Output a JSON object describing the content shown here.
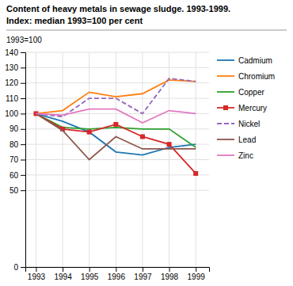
{
  "chart_data": {
    "type": "line",
    "title": "Content of heavy metals in sewage sludge. 1993-1999.",
    "subtitle": "Index: median 1993=100 per cent",
    "ylabel": "1993=100",
    "x": [
      1993,
      1994,
      1995,
      1996,
      1997,
      1998,
      1999
    ],
    "xlim": [
      1992.6,
      1999.5
    ],
    "xticks": [
      1993,
      1994,
      1995,
      1996,
      1997,
      1998,
      1999
    ],
    "ylim": [
      0,
      140
    ],
    "yticks": [
      0,
      50,
      60,
      70,
      80,
      90,
      100,
      110,
      120,
      130,
      140
    ],
    "grid": true,
    "legend": "right",
    "series": [
      {
        "name": "Cadmium",
        "values": [
          100,
          95,
          88,
          75,
          73,
          78,
          80
        ],
        "line_style": "solid"
      },
      {
        "name": "Chromium",
        "values": [
          100,
          102,
          114,
          111,
          113,
          122,
          121
        ],
        "line_style": "solid"
      },
      {
        "name": "Copper",
        "values": [
          100,
          91,
          90,
          91,
          90,
          90,
          78
        ],
        "line_style": "solid"
      },
      {
        "name": "Mercury",
        "values": [
          100,
          90,
          88,
          93,
          85,
          80,
          61
        ],
        "line_style": "solid",
        "marker": "square"
      },
      {
        "name": "Nickel",
        "values": [
          100,
          98,
          110,
          110,
          100,
          123,
          121
        ],
        "line_style": "dashed"
      },
      {
        "name": "Lead",
        "values": [
          100,
          89,
          70,
          85,
          77,
          77,
          77
        ],
        "line_style": "solid"
      },
      {
        "name": "Zinc",
        "values": [
          100,
          99,
          103,
          103,
          94,
          102,
          100
        ],
        "line_style": "solid"
      }
    ]
  }
}
